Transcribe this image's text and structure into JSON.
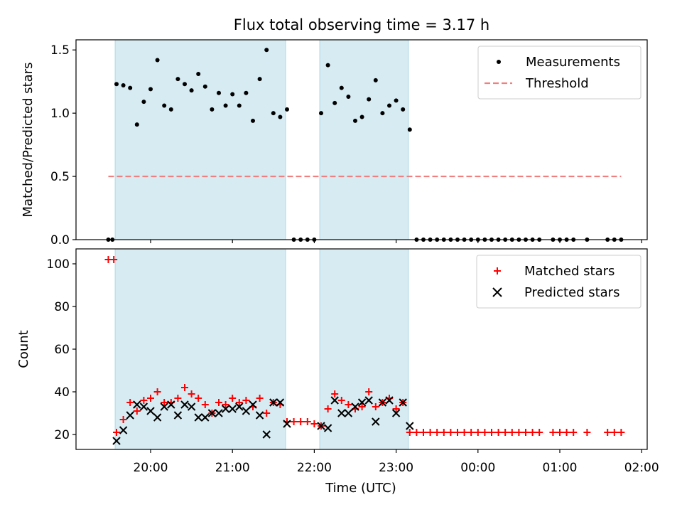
{
  "chart_data": [
    {
      "type": "scatter",
      "title": "Flux total observing time = 3.17 h",
      "xlabel": "",
      "ylabel": "Matched/Predicted stars",
      "ylim": [
        0,
        1.58
      ],
      "yticks": [
        0.0,
        0.5,
        1.0,
        1.5
      ],
      "ytick_labels": [
        "0.0",
        "0.5",
        "1.0",
        "1.5"
      ],
      "xlim": [
        "19:00",
        "02:00"
      ],
      "xticks": [
        "20:00",
        "21:00",
        "22:00",
        "23:00",
        "00:00",
        "01:00",
        "02:00"
      ],
      "shaded_intervals": [
        [
          "19:34",
          "21:39"
        ],
        [
          "22:04",
          "23:09"
        ]
      ],
      "legend_position": "top-right",
      "series": [
        {
          "name": "Measurements",
          "marker": "dot",
          "color": "#000000",
          "points": [
            [
              "19:29",
              0.0
            ],
            [
              "19:32",
              0.0
            ],
            [
              "19:35",
              1.23
            ],
            [
              "19:40",
              1.22
            ],
            [
              "19:45",
              1.2
            ],
            [
              "19:50",
              0.91
            ],
            [
              "19:55",
              1.09
            ],
            [
              "20:00",
              1.19
            ],
            [
              "20:05",
              1.42
            ],
            [
              "20:10",
              1.06
            ],
            [
              "20:15",
              1.03
            ],
            [
              "20:20",
              1.27
            ],
            [
              "20:25",
              1.23
            ],
            [
              "20:30",
              1.18
            ],
            [
              "20:35",
              1.31
            ],
            [
              "20:40",
              1.21
            ],
            [
              "20:45",
              1.03
            ],
            [
              "20:50",
              1.16
            ],
            [
              "20:55",
              1.06
            ],
            [
              "21:00",
              1.15
            ],
            [
              "21:05",
              1.06
            ],
            [
              "21:10",
              1.16
            ],
            [
              "21:15",
              0.94
            ],
            [
              "21:20",
              1.27
            ],
            [
              "21:25",
              1.5
            ],
            [
              "21:30",
              1.0
            ],
            [
              "21:35",
              0.97
            ],
            [
              "21:40",
              1.03
            ],
            [
              "21:45",
              0.0
            ],
            [
              "21:50",
              0.0
            ],
            [
              "21:55",
              0.0
            ],
            [
              "22:00",
              0.0
            ],
            [
              "22:05",
              1.0
            ],
            [
              "22:10",
              1.38
            ],
            [
              "22:15",
              1.08
            ],
            [
              "22:20",
              1.2
            ],
            [
              "22:25",
              1.13
            ],
            [
              "22:30",
              0.94
            ],
            [
              "22:35",
              0.97
            ],
            [
              "22:40",
              1.11
            ],
            [
              "22:45",
              1.26
            ],
            [
              "22:50",
              1.0
            ],
            [
              "22:55",
              1.06
            ],
            [
              "23:00",
              1.1
            ],
            [
              "23:05",
              1.03
            ],
            [
              "23:10",
              0.87
            ],
            [
              "23:15",
              0.0
            ],
            [
              "23:20",
              0.0
            ],
            [
              "23:25",
              0.0
            ],
            [
              "23:30",
              0.0
            ],
            [
              "23:35",
              0.0
            ],
            [
              "23:40",
              0.0
            ],
            [
              "23:45",
              0.0
            ],
            [
              "23:50",
              0.0
            ],
            [
              "23:55",
              0.0
            ],
            [
              "00:00",
              0.0
            ],
            [
              "00:05",
              0.0
            ],
            [
              "00:10",
              0.0
            ],
            [
              "00:15",
              0.0
            ],
            [
              "00:20",
              0.0
            ],
            [
              "00:25",
              0.0
            ],
            [
              "00:30",
              0.0
            ],
            [
              "00:35",
              0.0
            ],
            [
              "00:40",
              0.0
            ],
            [
              "00:45",
              0.0
            ],
            [
              "00:55",
              0.0
            ],
            [
              "01:00",
              0.0
            ],
            [
              "01:05",
              0.0
            ],
            [
              "01:10",
              0.0
            ],
            [
              "01:20",
              0.0
            ],
            [
              "01:35",
              0.0
            ],
            [
              "01:40",
              0.0
            ],
            [
              "01:45",
              0.0
            ]
          ]
        },
        {
          "name": "Threshold",
          "marker": "dashed-line",
          "color": "#f08080",
          "points": [
            [
              "19:29",
              0.5
            ],
            [
              "01:45",
              0.5
            ]
          ]
        }
      ]
    },
    {
      "type": "scatter",
      "title": "",
      "xlabel": "Time (UTC)",
      "ylabel": "Count",
      "ylim": [
        13,
        107
      ],
      "yticks": [
        20,
        40,
        60,
        80,
        100
      ],
      "ytick_labels": [
        "20",
        "40",
        "60",
        "80",
        "100"
      ],
      "xlim": [
        "19:00",
        "02:00"
      ],
      "xticks": [
        "20:00",
        "21:00",
        "22:00",
        "23:00",
        "00:00",
        "01:00",
        "02:00"
      ],
      "xtick_labels": [
        "20:00",
        "21:00",
        "22:00",
        "23:00",
        "00:00",
        "01:00",
        "02:00"
      ],
      "shaded_intervals": [
        [
          "19:34",
          "21:39"
        ],
        [
          "22:04",
          "23:09"
        ]
      ],
      "legend_position": "top-right",
      "series": [
        {
          "name": "Matched stars",
          "marker": "plus",
          "color": "#ff0000",
          "points": [
            [
              "19:29",
              102
            ],
            [
              "19:33",
              102
            ],
            [
              "19:35",
              21
            ],
            [
              "19:40",
              27
            ],
            [
              "19:45",
              35
            ],
            [
              "19:50",
              31
            ],
            [
              "19:55",
              36
            ],
            [
              "20:00",
              37
            ],
            [
              "20:05",
              40
            ],
            [
              "20:10",
              35
            ],
            [
              "20:15",
              35
            ],
            [
              "20:20",
              37
            ],
            [
              "20:25",
              42
            ],
            [
              "20:30",
              39
            ],
            [
              "20:35",
              37
            ],
            [
              "20:40",
              34
            ],
            [
              "20:45",
              30
            ],
            [
              "20:50",
              35
            ],
            [
              "20:55",
              34
            ],
            [
              "21:00",
              37
            ],
            [
              "21:05",
              35
            ],
            [
              "21:10",
              36
            ],
            [
              "21:15",
              33
            ],
            [
              "21:20",
              37
            ],
            [
              "21:25",
              30
            ],
            [
              "21:30",
              35
            ],
            [
              "21:35",
              34
            ],
            [
              "21:40",
              26
            ],
            [
              "21:45",
              26
            ],
            [
              "21:50",
              26
            ],
            [
              "21:55",
              26
            ],
            [
              "22:00",
              25
            ],
            [
              "22:05",
              24
            ],
            [
              "22:10",
              32
            ],
            [
              "22:15",
              39
            ],
            [
              "22:20",
              36
            ],
            [
              "22:25",
              34
            ],
            [
              "22:30",
              32
            ],
            [
              "22:35",
              33
            ],
            [
              "22:40",
              40
            ],
            [
              "22:45",
              33
            ],
            [
              "22:50",
              35
            ],
            [
              "22:55",
              37
            ],
            [
              "23:00",
              32
            ],
            [
              "23:05",
              35
            ],
            [
              "23:10",
              21
            ],
            [
              "23:15",
              21
            ],
            [
              "23:20",
              21
            ],
            [
              "23:25",
              21
            ],
            [
              "23:30",
              21
            ],
            [
              "23:35",
              21
            ],
            [
              "23:40",
              21
            ],
            [
              "23:45",
              21
            ],
            [
              "23:50",
              21
            ],
            [
              "23:55",
              21
            ],
            [
              "00:00",
              21
            ],
            [
              "00:05",
              21
            ],
            [
              "00:10",
              21
            ],
            [
              "00:15",
              21
            ],
            [
              "00:20",
              21
            ],
            [
              "00:25",
              21
            ],
            [
              "00:30",
              21
            ],
            [
              "00:35",
              21
            ],
            [
              "00:40",
              21
            ],
            [
              "00:45",
              21
            ],
            [
              "00:55",
              21
            ],
            [
              "01:00",
              21
            ],
            [
              "01:05",
              21
            ],
            [
              "01:10",
              21
            ],
            [
              "01:20",
              21
            ],
            [
              "01:35",
              21
            ],
            [
              "01:40",
              21
            ],
            [
              "01:45",
              21
            ]
          ]
        },
        {
          "name": "Predicted stars",
          "marker": "x",
          "color": "#000000",
          "points": [
            [
              "19:35",
              17
            ],
            [
              "19:40",
              22
            ],
            [
              "19:45",
              29
            ],
            [
              "19:50",
              34
            ],
            [
              "19:55",
              33
            ],
            [
              "20:00",
              31
            ],
            [
              "20:05",
              28
            ],
            [
              "20:10",
              33
            ],
            [
              "20:15",
              34
            ],
            [
              "20:20",
              29
            ],
            [
              "20:25",
              34
            ],
            [
              "20:30",
              33
            ],
            [
              "20:35",
              28
            ],
            [
              "20:40",
              28
            ],
            [
              "20:45",
              30
            ],
            [
              "20:50",
              30
            ],
            [
              "20:55",
              32
            ],
            [
              "21:00",
              32
            ],
            [
              "21:05",
              33
            ],
            [
              "21:10",
              31
            ],
            [
              "21:15",
              34
            ],
            [
              "21:20",
              29
            ],
            [
              "21:25",
              20
            ],
            [
              "21:30",
              35
            ],
            [
              "21:35",
              35
            ],
            [
              "21:40",
              25
            ],
            [
              "22:05",
              24
            ],
            [
              "22:10",
              23
            ],
            [
              "22:15",
              36
            ],
            [
              "22:20",
              30
            ],
            [
              "22:25",
              30
            ],
            [
              "22:30",
              33
            ],
            [
              "22:35",
              35
            ],
            [
              "22:40",
              36
            ],
            [
              "22:45",
              26
            ],
            [
              "22:50",
              35
            ],
            [
              "22:55",
              36
            ],
            [
              "23:00",
              30
            ],
            [
              "23:05",
              35
            ],
            [
              "23:10",
              24
            ]
          ]
        }
      ]
    }
  ]
}
